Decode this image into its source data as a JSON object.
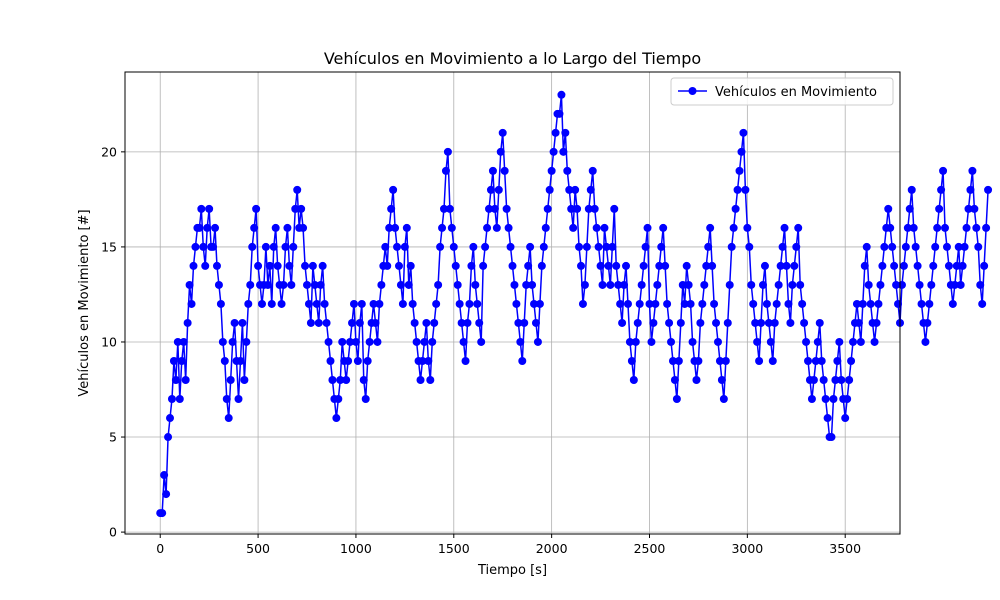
{
  "chart_data": {
    "type": "line",
    "title": "Vehículos en Movimiento a lo Largo del Tiempo",
    "xlabel": "Tiempo [s]",
    "ylabel": "Vehículos en Movimiento [#]",
    "xlim": [
      -180,
      3780
    ],
    "ylim": [
      -0.1,
      24.2
    ],
    "xticks": [
      0,
      500,
      1000,
      1500,
      2000,
      2500,
      3000,
      3500
    ],
    "yticks": [
      0,
      5,
      10,
      15,
      20
    ],
    "grid": true,
    "legend_position": "top-right",
    "series": [
      {
        "name": "Vehículos en Movimiento",
        "color": "#0000ff",
        "marker": "circle",
        "x_start": 0,
        "x_step": 10,
        "y": [
          1,
          1,
          3,
          2,
          5,
          6,
          7,
          9,
          8,
          10,
          7,
          9,
          10,
          8,
          11,
          13,
          12,
          14,
          15,
          16,
          16,
          17,
          15,
          14,
          16,
          17,
          15,
          15,
          16,
          14,
          13,
          12,
          10,
          9,
          7,
          6,
          8,
          10,
          11,
          9,
          7,
          9,
          11,
          8,
          10,
          12,
          13,
          15,
          16,
          17,
          14,
          13,
          12,
          13,
          15,
          13,
          14,
          12,
          15,
          16,
          14,
          13,
          12,
          13,
          15,
          16,
          14,
          13,
          15,
          17,
          18,
          16,
          17,
          16,
          14,
          13,
          12,
          11,
          14,
          13,
          12,
          11,
          13,
          14,
          12,
          11,
          10,
          9,
          8,
          7,
          6,
          7,
          8,
          10,
          9,
          8,
          9,
          10,
          11,
          12,
          10,
          9,
          11,
          12,
          8,
          7,
          9,
          10,
          11,
          12,
          11,
          10,
          12,
          13,
          14,
          15,
          14,
          16,
          17,
          18,
          16,
          15,
          14,
          13,
          12,
          15,
          16,
          13,
          14,
          12,
          11,
          10,
          9,
          8,
          9,
          10,
          11,
          9,
          8,
          10,
          11,
          12,
          13,
          15,
          16,
          17,
          19,
          20,
          17,
          16,
          15,
          14,
          13,
          12,
          11,
          10,
          9,
          11,
          12,
          14,
          15,
          13,
          12,
          11,
          10,
          14,
          15,
          16,
          17,
          18,
          19,
          17,
          16,
          18,
          20,
          21,
          19,
          17,
          16,
          15,
          14,
          13,
          12,
          11,
          10,
          9,
          11,
          13,
          14,
          15,
          13,
          12,
          11,
          10,
          12,
          14,
          15,
          16,
          17,
          18,
          19,
          20,
          21,
          22,
          22,
          23,
          20,
          21,
          19,
          18,
          17,
          16,
          18,
          17,
          15,
          14,
          12,
          13,
          15,
          17,
          18,
          19,
          17,
          16,
          15,
          14,
          13,
          16,
          15,
          14,
          13,
          15,
          17,
          14,
          13,
          12,
          11,
          13,
          14,
          12,
          10,
          9,
          8,
          10,
          11,
          12,
          13,
          14,
          15,
          16,
          12,
          10,
          11,
          12,
          13,
          14,
          15,
          16,
          14,
          12,
          11,
          10,
          9,
          8,
          7,
          9,
          11,
          13,
          12,
          14,
          13,
          12,
          10,
          9,
          8,
          9,
          11,
          12,
          13,
          14,
          15,
          16,
          14,
          12,
          11,
          10,
          9,
          8,
          7,
          9,
          11,
          13,
          15,
          16,
          17,
          18,
          19,
          20,
          21,
          18,
          16,
          15,
          13,
          12,
          11,
          10,
          9,
          11,
          13,
          14,
          12,
          11,
          10,
          9,
          11,
          12,
          13,
          14,
          15,
          16,
          14,
          12,
          11,
          13,
          14,
          15,
          16,
          13,
          12,
          11,
          10,
          9,
          8,
          7,
          8,
          9,
          10,
          11,
          9,
          8,
          7,
          6,
          5,
          5,
          7,
          8,
          9,
          10,
          8,
          7,
          6,
          7,
          8,
          9,
          10,
          11,
          12,
          11,
          10,
          12,
          14,
          15,
          13,
          12,
          11,
          10,
          11,
          12,
          13,
          14,
          15,
          16,
          17,
          16,
          15,
          14,
          13,
          12,
          11,
          13,
          14,
          15,
          16,
          17,
          18,
          16,
          15,
          14,
          13,
          12,
          11,
          10,
          11,
          12,
          13,
          14,
          15,
          16,
          17,
          18,
          19,
          16,
          15,
          14,
          13,
          12,
          13,
          14,
          15,
          13,
          14,
          15,
          16,
          17,
          18,
          19,
          17,
          16,
          15,
          13,
          12,
          14,
          16,
          18
        ]
      }
    ]
  }
}
